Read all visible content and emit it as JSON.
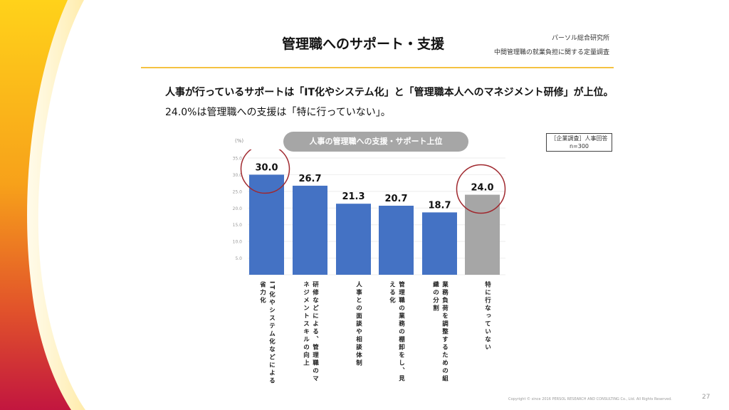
{
  "header": {
    "title": "管理職へのサポート・支援",
    "organization": "パーソル総合研究所",
    "survey_name": "中間管理職の就業負担に関する定量調査"
  },
  "message": {
    "line1": "人事が行っているサポートは「IT化やシステム化」と「管理職本人へのマネジメント研修」が上位。",
    "line2": "24.0%は管理職への支援は「特に行っていない」。"
  },
  "sample_box": {
    "line1": "［企業調査］人事回答",
    "line2": "n=300"
  },
  "colors": {
    "accent": "#f5c242",
    "bar_blue": "#4472c4",
    "bar_gray": "#a6a6a6",
    "highlight_circle": "#a0282e"
  },
  "chart_data": {
    "type": "bar",
    "title": "人事の管理職への支援・サポート上位",
    "ylabel": "(%)",
    "ylim": [
      0,
      35
    ],
    "yticks": [
      "35.0",
      "30.0",
      "25.0",
      "20.0",
      "15.0",
      "10.0",
      "5.0",
      ""
    ],
    "grid": true,
    "categories": [
      "IT化やシステム化などによる省力化",
      "研修などによる、管理職のマネジメントスキルの向上",
      "人事との面談や相談体制",
      "管理職の業務の棚卸をし、見える化",
      "業務負荷を調整するための組織の分割",
      "特に行なっていない"
    ],
    "values": [
      30.0,
      26.7,
      21.3,
      20.7,
      18.7,
      24.0
    ],
    "labels": [
      "30.0",
      "26.7",
      "21.3",
      "20.7",
      "18.7",
      "24.0"
    ],
    "highlighted": [
      0,
      5
    ]
  },
  "footer": {
    "copyright": "Copyright © since 2016  PERSOL RESEARCH AND CONSULTING Co., Ltd. All Rights Reserved.",
    "page": "27"
  }
}
